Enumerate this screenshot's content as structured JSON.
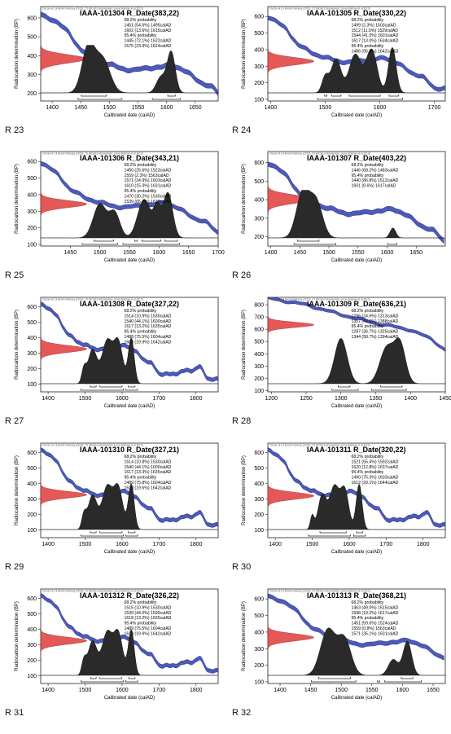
{
  "page": {
    "header_note": "OxCal v4.2.4 Bronk Ramsey (2013); r:5 IntCal13 atmospheric curve (Reimer et al 2013)",
    "x_axis_label": "Calibrated date (calAD)",
    "y_axis_label": "Radiocarbon determination (BP)"
  },
  "colors": {
    "curve": "#3b49b0",
    "radiocarbon": "#e03c3c",
    "posterior": "#2a2a2a"
  },
  "chart_data": [
    {
      "type": "line",
      "panel_label": "R 23",
      "title": "IAAA-101304 R_Date(383,22)",
      "xlim": [
        1380,
        1690
      ],
      "ylim": [
        160,
        660
      ],
      "xticks": [
        1400,
        1450,
        1500,
        1550,
        1600,
        1650
      ],
      "yticks": [
        200,
        300,
        400,
        500,
        600
      ],
      "c14_mean": 383,
      "c14_sd": 22,
      "prob_lines": [
        "68.2% probability",
        "1451 (54.6%) 1495calAD",
        "1602 (13.6%) 1615calAD",
        "95.4% probability",
        "1445 (72.1%) 1522calAD",
        "1575 (23.3%) 1624calAD"
      ],
      "peaks": [
        {
          "c": 1463,
          "w": 11,
          "h": 1.0
        },
        {
          "c": 1488,
          "w": 13,
          "h": 0.75
        },
        {
          "c": 1608,
          "w": 7,
          "h": 0.9
        },
        {
          "c": 1590,
          "w": 8,
          "h": 0.35
        }
      ],
      "ranges68": [
        [
          1451,
          1495
        ],
        [
          1602,
          1615
        ]
      ],
      "ranges95": [
        [
          1445,
          1522
        ],
        [
          1575,
          1624
        ]
      ]
    },
    {
      "type": "line",
      "panel_label": "R 24",
      "title": "IAAA-101305 R_Date(330,22)",
      "xlim": [
        1395,
        1720
      ],
      "ylim": [
        90,
        660
      ],
      "xticks": [
        1400,
        1500,
        1600,
        1700
      ],
      "yticks": [
        100,
        200,
        300,
        400,
        500,
        600
      ],
      "c14_mean": 330,
      "c14_sd": 22,
      "prob_lines": [
        "68.2% probability",
        "1499 (2.3%) 1503calAD",
        "1512 (11.5%) 1529calAD",
        "1544 (41.5%) 1601calAD",
        "1617 (13.0%) 1634calAD",
        "95.4% probability",
        "1486 (95.4%) 1642calAD"
      ],
      "peaks": [
        {
          "c": 1520,
          "w": 9,
          "h": 0.75
        },
        {
          "c": 1555,
          "w": 11,
          "h": 0.85
        },
        {
          "c": 1585,
          "w": 10,
          "h": 0.95
        },
        {
          "c": 1623,
          "w": 7,
          "h": 1.0
        },
        {
          "c": 1500,
          "w": 6,
          "h": 0.35
        }
      ],
      "ranges68": [
        [
          1499,
          1503
        ],
        [
          1512,
          1529
        ],
        [
          1544,
          1601
        ],
        [
          1617,
          1634
        ]
      ],
      "ranges95": [
        [
          1486,
          1642
        ]
      ]
    },
    {
      "type": "line",
      "panel_label": "R 25",
      "title": "IAAA-101306 R_Date(343,21)",
      "xlim": [
        1400,
        1700
      ],
      "ylim": [
        90,
        660
      ],
      "xticks": [
        1450,
        1500,
        1550,
        1600,
        1650,
        1700
      ],
      "yticks": [
        100,
        200,
        300,
        400,
        500,
        600
      ],
      "c14_mean": 343,
      "c14_sd": 21,
      "prob_lines": [
        "68.2% probability",
        "1490 (25.6%) 1523calAD",
        "1559 (2.3%) 1563calAD",
        "1571 (24.9%) 1603calAD",
        "1610 (15.3%) 1631calAD",
        "95.4% probability",
        "1470 (30.2%) 1530calAD",
        "1539 (65.2%) 1635calAD"
      ],
      "peaks": [
        {
          "c": 1500,
          "w": 11,
          "h": 0.75
        },
        {
          "c": 1525,
          "w": 9,
          "h": 0.55
        },
        {
          "c": 1575,
          "w": 11,
          "h": 0.85
        },
        {
          "c": 1615,
          "w": 8,
          "h": 1.0
        },
        {
          "c": 1597,
          "w": 6,
          "h": 0.6
        }
      ],
      "ranges68": [
        [
          1490,
          1523
        ],
        [
          1559,
          1563
        ],
        [
          1571,
          1603
        ],
        [
          1610,
          1631
        ]
      ],
      "ranges95": [
        [
          1470,
          1530
        ],
        [
          1539,
          1635
        ]
      ]
    },
    {
      "type": "line",
      "panel_label": "R 26",
      "title": "IAAA-101307 R_Date(403,22)",
      "xlim": [
        1395,
        1700
      ],
      "ylim": [
        150,
        660
      ],
      "xticks": [
        1400,
        1450,
        1500,
        1550,
        1600,
        1650
      ],
      "yticks": [
        200,
        300,
        400,
        500,
        600
      ],
      "c14_mean": 403,
      "c14_sd": 22,
      "prob_lines": [
        "68.2% probability",
        "1446 (68.2%) 1483calAD",
        "95.4% probability",
        "1440 (86.8%) 1512calAD",
        "1601 (8.6%) 1617calAD"
      ],
      "peaks": [
        {
          "c": 1455,
          "w": 11,
          "h": 1.0
        },
        {
          "c": 1478,
          "w": 11,
          "h": 0.8
        },
        {
          "c": 1610,
          "w": 5,
          "h": 0.22
        }
      ],
      "ranges68": [
        [
          1446,
          1483
        ]
      ],
      "ranges95": [
        [
          1440,
          1512
        ],
        [
          1601,
          1617
        ]
      ]
    },
    {
      "type": "line",
      "panel_label": "R 27",
      "title": "IAAA-101308 R_Date(327,22)",
      "xlim": [
        1380,
        1860
      ],
      "ylim": [
        50,
        660
      ],
      "xticks": [
        1400,
        1500,
        1600,
        1700,
        1800
      ],
      "yticks": [
        100,
        200,
        300,
        400,
        500,
        600
      ],
      "c14_mean": 327,
      "c14_sd": 22,
      "prob_lines": [
        "68.2% probability",
        "1514 (10.9%) 1530calAD",
        "1540 (44.1%) 1600calAD",
        "1617 (13.2%) 1635calAD",
        "95.4% probability",
        "1488 (75.5%) 1604calAD",
        "1609 (19.9%) 1642calAD"
      ],
      "peaks": [
        {
          "c": 1520,
          "w": 12,
          "h": 0.75
        },
        {
          "c": 1560,
          "w": 14,
          "h": 0.95
        },
        {
          "c": 1590,
          "w": 12,
          "h": 0.9
        },
        {
          "c": 1625,
          "w": 8,
          "h": 1.0
        },
        {
          "c": 1497,
          "w": 6,
          "h": 0.3
        }
      ],
      "ranges68": [
        [
          1514,
          1530
        ],
        [
          1540,
          1600
        ],
        [
          1617,
          1635
        ]
      ],
      "ranges95": [
        [
          1488,
          1604
        ],
        [
          1609,
          1642
        ]
      ]
    },
    {
      "type": "line",
      "panel_label": "R 28",
      "title": "IAAA-101309 R_Date(636,21)",
      "xlim": [
        1195,
        1450
      ],
      "ylim": [
        90,
        860
      ],
      "xticks": [
        1200,
        1250,
        1300,
        1350,
        1400,
        1450
      ],
      "yticks": [
        100,
        200,
        300,
        400,
        500,
        600,
        700,
        800
      ],
      "c14_mean": 636,
      "c14_sd": 21,
      "prob_lines": [
        "68.2% probability",
        "1296 (24.6%) 1313calAD",
        "1357 (43.6%) 1388calAD",
        "95.4% probability",
        "1287 (36.7%) 1325calAD",
        "1344 (58.7%) 1394calAD"
      ],
      "peaks": [
        {
          "c": 1300,
          "w": 9,
          "h": 1.0
        },
        {
          "c": 1366,
          "w": 10,
          "h": 0.8
        },
        {
          "c": 1385,
          "w": 8,
          "h": 0.85
        }
      ],
      "ranges68": [
        [
          1296,
          1313
        ],
        [
          1357,
          1388
        ]
      ],
      "ranges95": [
        [
          1287,
          1325
        ],
        [
          1344,
          1394
        ]
      ]
    },
    {
      "type": "line",
      "panel_label": "R 29",
      "title": "IAAA-101310 R_Date(327,21)",
      "xlim": [
        1380,
        1860
      ],
      "ylim": [
        50,
        660
      ],
      "xticks": [
        1400,
        1500,
        1600,
        1700,
        1800
      ],
      "yticks": [
        100,
        200,
        300,
        400,
        500,
        600
      ],
      "c14_mean": 327,
      "c14_sd": 21,
      "prob_lines": [
        "68.2% probability",
        "1514 (10.8%) 1530calAD",
        "1540 (44.1%) 1600calAD",
        "1617 (13.3%) 1635calAD",
        "95.4% probability",
        "1489 (75.8%) 1604calAD",
        "1610 (19.6%) 1642calAD"
      ],
      "peaks": [
        {
          "c": 1520,
          "w": 12,
          "h": 0.75
        },
        {
          "c": 1560,
          "w": 14,
          "h": 0.95
        },
        {
          "c": 1590,
          "w": 12,
          "h": 0.9
        },
        {
          "c": 1625,
          "w": 8,
          "h": 1.0
        },
        {
          "c": 1497,
          "w": 6,
          "h": 0.3
        }
      ],
      "ranges68": [
        [
          1514,
          1530
        ],
        [
          1540,
          1600
        ],
        [
          1617,
          1635
        ]
      ],
      "ranges95": [
        [
          1489,
          1604
        ],
        [
          1610,
          1642
        ]
      ]
    },
    {
      "type": "line",
      "panel_label": "R 30",
      "title": "IAAA-101311 R_Date(320,22)",
      "xlim": [
        1380,
        1860
      ],
      "ylim": [
        50,
        660
      ],
      "xticks": [
        1400,
        1500,
        1600,
        1700,
        1800
      ],
      "yticks": [
        100,
        200,
        300,
        400,
        500,
        600
      ],
      "c14_mean": 320,
      "c14_sd": 22,
      "prob_lines": [
        "68.2% probability",
        "1521 (55.4%) 1592calAD",
        "1620 (12.8%) 1637calAD",
        "95.4% probability",
        "1490 (75.3%) 1603calAD",
        "1612 (20.1%) 1644calAD"
      ],
      "peaks": [
        {
          "c": 1527,
          "w": 11,
          "h": 0.75
        },
        {
          "c": 1560,
          "w": 13,
          "h": 0.95
        },
        {
          "c": 1588,
          "w": 11,
          "h": 0.85
        },
        {
          "c": 1627,
          "w": 8,
          "h": 1.0
        },
        {
          "c": 1500,
          "w": 5,
          "h": 0.3
        }
      ],
      "ranges68": [
        [
          1521,
          1592
        ],
        [
          1620,
          1637
        ]
      ],
      "ranges95": [
        [
          1490,
          1603
        ],
        [
          1612,
          1644
        ]
      ]
    },
    {
      "type": "line",
      "panel_label": "R 31",
      "title": "IAAA-101312 R_Date(326,22)",
      "xlim": [
        1380,
        1860
      ],
      "ylim": [
        50,
        660
      ],
      "xticks": [
        1400,
        1500,
        1600,
        1700,
        1800
      ],
      "yticks": [
        100,
        200,
        300,
        400,
        500,
        600
      ],
      "c14_mean": 326,
      "c14_sd": 22,
      "prob_lines": [
        "68.2% probability",
        "1515 (10.9%) 1530calAD",
        "1539 (44.0%) 1599calAD",
        "1618 (13.2%) 1635calAD",
        "95.4% probability",
        "1489 (75.5%) 1604calAD",
        "1610 (19.9%) 1642calAD"
      ],
      "peaks": [
        {
          "c": 1520,
          "w": 12,
          "h": 0.75
        },
        {
          "c": 1560,
          "w": 14,
          "h": 0.95
        },
        {
          "c": 1590,
          "w": 12,
          "h": 0.9
        },
        {
          "c": 1625,
          "w": 8,
          "h": 1.0
        },
        {
          "c": 1497,
          "w": 6,
          "h": 0.3
        }
      ],
      "ranges68": [
        [
          1515,
          1530
        ],
        [
          1539,
          1599
        ],
        [
          1618,
          1635
        ]
      ],
      "ranges95": [
        [
          1489,
          1604
        ],
        [
          1610,
          1642
        ]
      ]
    },
    {
      "type": "line",
      "panel_label": "R 32",
      "title": "IAAA-101313 R_Date(368,21)",
      "xlim": [
        1380,
        1670
      ],
      "ylim": [
        90,
        660
      ],
      "xticks": [
        1400,
        1450,
        1500,
        1550,
        1600,
        1650
      ],
      "yticks": [
        100,
        200,
        300,
        400,
        500,
        600
      ],
      "c14_mean": 368,
      "c14_sd": 21,
      "prob_lines": [
        "68.2% probability",
        "1463 (49.0%) 1515calAD",
        "1598 (19.2%) 1617calAD",
        "95.4% probability",
        "1451 (59.6%) 1524calAD",
        "1559 (0.8%) 1563calAD",
        "1571 (35.1%) 1631calAD"
      ],
      "peaks": [
        {
          "c": 1478,
          "w": 12,
          "h": 1.0
        },
        {
          "c": 1505,
          "w": 11,
          "h": 0.8
        },
        {
          "c": 1608,
          "w": 7,
          "h": 0.75
        },
        {
          "c": 1585,
          "w": 8,
          "h": 0.35
        }
      ],
      "ranges68": [
        [
          1463,
          1515
        ],
        [
          1598,
          1617
        ]
      ],
      "ranges95": [
        [
          1451,
          1524
        ],
        [
          1559,
          1563
        ],
        [
          1571,
          1631
        ]
      ]
    }
  ]
}
